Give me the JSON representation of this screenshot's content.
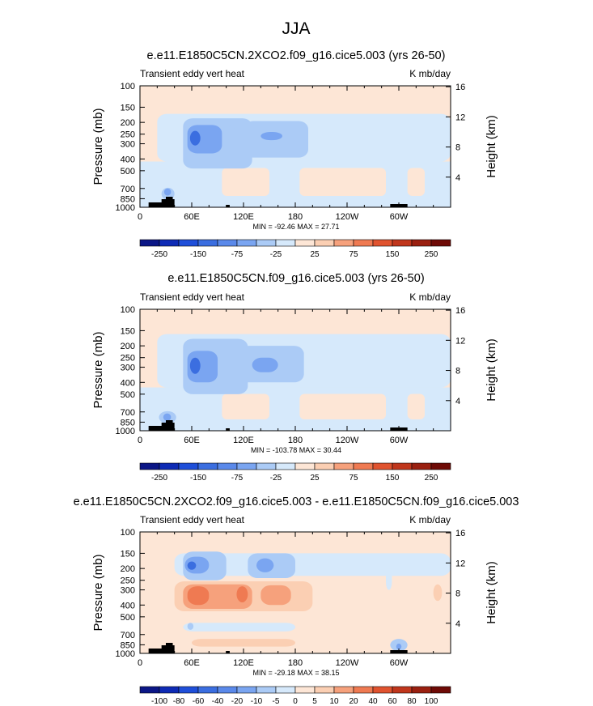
{
  "figure": {
    "title": "JJA",
    "colors": {
      "panel_bg": "#fde6d6",
      "light_blue": "#d6e9fb",
      "mid_blue": "#abcbf6",
      "blue": "#7aa5f1",
      "deep_blue": "#3b6ee0",
      "light_orange": "#fbcfb3",
      "orange": "#f6a17c",
      "deep_orange": "#ef7a52",
      "topography": "#000000"
    }
  },
  "chart_data": [
    {
      "type": "heatmap",
      "title": "e.e11.E1850C5CN.2XCO2.f09_g16.cice5.003 (yrs 26-50)",
      "left_label": "Transient eddy vert heat",
      "right_label": "K mb/day",
      "ylabel": "Pressure (mb)",
      "y2label": "Height (km)",
      "x_ticks": [
        "0",
        "60E",
        "120E",
        "180",
        "120W",
        "60W"
      ],
      "y_ticks": [
        "100",
        "150",
        "200",
        "250",
        "300",
        "400",
        "500",
        "700",
        "850",
        "1000"
      ],
      "y2_ticks": [
        "16",
        "12",
        "8",
        "4"
      ],
      "min_max_text": "MIN = -92.46   MAX =  27.71",
      "min": -92.46,
      "max": 27.71,
      "colorbar_labels": [
        "-250",
        "-150",
        "-75",
        "-25",
        "25",
        "75",
        "150",
        "250"
      ],
      "colorbar_colors": [
        "#0b1686",
        "#0e2bb5",
        "#1f4fd9",
        "#3b6ee0",
        "#5a89ea",
        "#7aa5f1",
        "#abcbf6",
        "#d6e9fb",
        "#fde6d6",
        "#fbcfb3",
        "#f6a17c",
        "#ef7a52",
        "#e0532f",
        "#c0361c",
        "#9a2010",
        "#6e0a06"
      ]
    },
    {
      "type": "heatmap",
      "title": "e.e11.E1850C5CN.f09_g16.cice5.003 (yrs 26-50)",
      "left_label": "Transient eddy vert heat",
      "right_label": "K mb/day",
      "ylabel": "Pressure (mb)",
      "y2label": "Height (km)",
      "x_ticks": [
        "0",
        "60E",
        "120E",
        "180",
        "120W",
        "60W"
      ],
      "y_ticks": [
        "100",
        "150",
        "200",
        "250",
        "300",
        "400",
        "500",
        "700",
        "850",
        "1000"
      ],
      "y2_ticks": [
        "16",
        "12",
        "8",
        "4"
      ],
      "min_max_text": "MIN = -103.78   MAX =  30.44",
      "min": -103.78,
      "max": 30.44,
      "colorbar_labels": [
        "-250",
        "-150",
        "-75",
        "-25",
        "25",
        "75",
        "150",
        "250"
      ],
      "colorbar_colors": [
        "#0b1686",
        "#0e2bb5",
        "#1f4fd9",
        "#3b6ee0",
        "#5a89ea",
        "#7aa5f1",
        "#abcbf6",
        "#d6e9fb",
        "#fde6d6",
        "#fbcfb3",
        "#f6a17c",
        "#ef7a52",
        "#e0532f",
        "#c0361c",
        "#9a2010",
        "#6e0a06"
      ]
    },
    {
      "type": "heatmap",
      "title": "e.e11.E1850C5CN.2XCO2.f09_g16.cice5.003 - e.e11.E1850C5CN.f09_g16.cice5.003",
      "left_label": "Transient eddy vert heat",
      "right_label": "K mb/day",
      "ylabel": "Pressure (mb)",
      "y2label": "Height (km)",
      "x_ticks": [
        "0",
        "60E",
        "120E",
        "180",
        "120W",
        "60W"
      ],
      "y_ticks": [
        "100",
        "150",
        "200",
        "250",
        "300",
        "400",
        "500",
        "700",
        "850",
        "1000"
      ],
      "y2_ticks": [
        "16",
        "12",
        "8",
        "4"
      ],
      "min_max_text": "MIN = -29.18   MAX =  38.15",
      "min": -29.18,
      "max": 38.15,
      "colorbar_labels": [
        "-100",
        "-80",
        "-60",
        "-40",
        "-20",
        "-10",
        "-5",
        "0",
        "5",
        "10",
        "20",
        "40",
        "60",
        "80",
        "100"
      ],
      "colorbar_colors": [
        "#0b1686",
        "#0e2bb5",
        "#1f4fd9",
        "#3b6ee0",
        "#5a89ea",
        "#7aa5f1",
        "#abcbf6",
        "#d6e9fb",
        "#fde6d6",
        "#fbcfb3",
        "#f6a17c",
        "#ef7a52",
        "#e0532f",
        "#c0361c",
        "#9a2010",
        "#6e0a06"
      ]
    }
  ]
}
